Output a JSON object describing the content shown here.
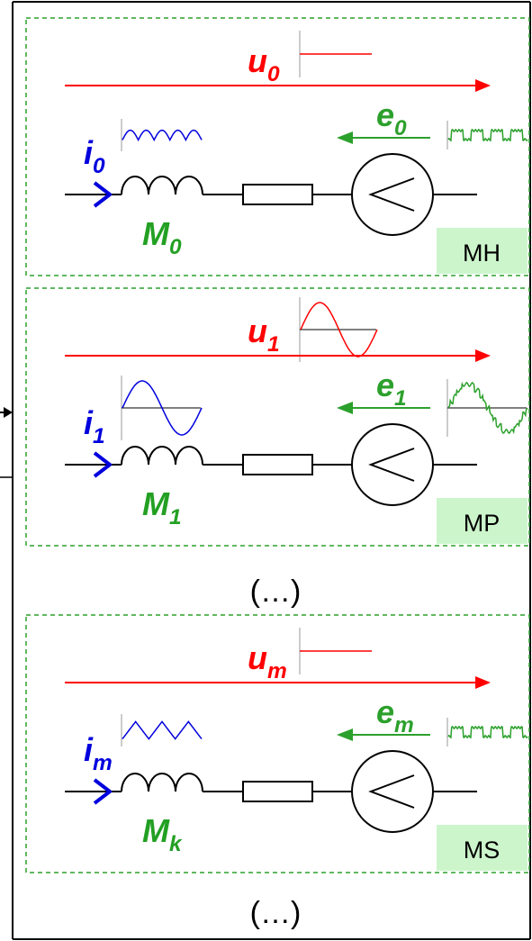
{
  "colors": {
    "voltage": "#ff0000",
    "emf": "#2ca02c",
    "current": "#0000dd",
    "inductance": "#23a023",
    "frame_dashed": "#2ca02c",
    "tag_bg": "#ccf5cc",
    "black": "#000000"
  },
  "modules": [
    {
      "u": {
        "base": "u",
        "sub": "0"
      },
      "e": {
        "base": "e",
        "sub": "0"
      },
      "i": {
        "base": "i",
        "sub": "0"
      },
      "m": {
        "base": "M",
        "sub": "0"
      },
      "tag": "MH",
      "u_waveform": "flat",
      "i_waveform": "ripple",
      "e_waveform": "pulse"
    },
    {
      "u": {
        "base": "u",
        "sub": "1"
      },
      "e": {
        "base": "e",
        "sub": "1"
      },
      "i": {
        "base": "i",
        "sub": "1"
      },
      "m": {
        "base": "M",
        "sub": "1"
      },
      "tag": "MP",
      "u_waveform": "sine",
      "i_waveform": "sine",
      "e_waveform": "stepped-sine"
    },
    {
      "u": {
        "base": "u",
        "sub": "m"
      },
      "e": {
        "base": "e",
        "sub": "m"
      },
      "i": {
        "base": "i",
        "sub": "m"
      },
      "m": {
        "base": "M",
        "sub": "k"
      },
      "tag": "MS",
      "u_waveform": "flat",
      "i_waveform": "triangle",
      "e_waveform": "pulse"
    }
  ],
  "ellipsis": [
    "(…)",
    "(…)"
  ]
}
